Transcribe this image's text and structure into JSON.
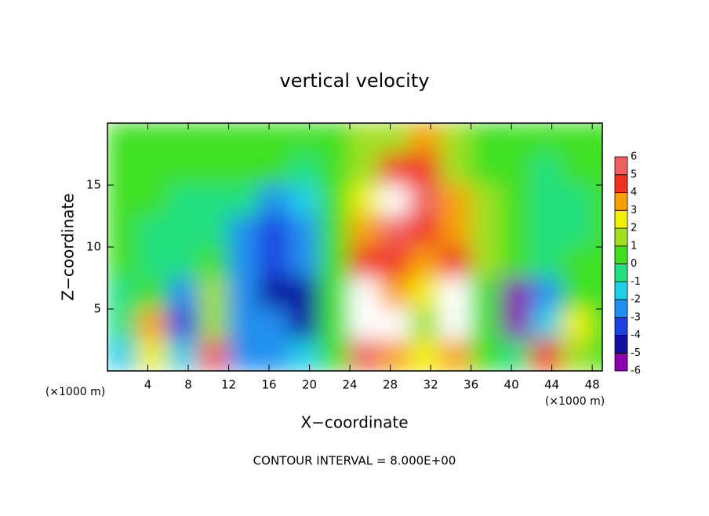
{
  "chart_data": {
    "type": "heatmap",
    "title": "vertical velocity",
    "x_label": "X−coordinate",
    "y_label": "Z−coordinate",
    "x_unit": "(×1000 m)",
    "y_unit": "(×1000 m)",
    "footer": "CONTOUR INTERVAL = 8.000E+00",
    "xlim": [
      0,
      49
    ],
    "ylim": [
      0,
      20
    ],
    "xticks": [
      4,
      8,
      12,
      16,
      20,
      24,
      28,
      32,
      36,
      40,
      44,
      48
    ],
    "yticks": [
      5,
      10,
      15
    ],
    "x": [
      1.5,
      4.5,
      7.5,
      10.5,
      13.5,
      16.5,
      19.5,
      22.5,
      25.5,
      28.5,
      31.5,
      34.5,
      37.5,
      40.5,
      43.5,
      46.5,
      49.5
    ],
    "y": [
      18.75,
      16.25,
      13.75,
      11.25,
      8.75,
      6.25,
      3.75,
      1.25
    ],
    "z": [
      [
        0.5,
        0,
        0,
        0.5,
        0.5,
        0.5,
        0,
        0.5,
        1,
        1.5,
        3,
        1,
        0.5,
        0,
        0.5,
        0,
        0
      ],
      [
        0,
        0,
        0,
        0.5,
        0,
        0,
        -0.5,
        0.5,
        1.5,
        4,
        4,
        1.5,
        0.5,
        0,
        -0.5,
        0,
        0
      ],
      [
        0.5,
        0,
        -0.5,
        -1,
        -1,
        -3,
        -2,
        0.5,
        2,
        6,
        5,
        3,
        1,
        0,
        -1,
        -0.5,
        0
      ],
      [
        0.5,
        -0.5,
        -1,
        -1,
        -3,
        -4,
        -3,
        0,
        3,
        5,
        4,
        3,
        1,
        0,
        -1,
        -0.5,
        0
      ],
      [
        0,
        -0.5,
        -1,
        0.5,
        -3,
        -4,
        -3,
        0,
        4,
        4,
        3,
        4,
        1,
        0,
        -1,
        0.5,
        0
      ],
      [
        -1,
        0,
        -3,
        1,
        -3,
        -5,
        -5,
        0,
        7,
        3,
        2,
        7,
        0,
        -6,
        -3,
        0,
        0
      ],
      [
        -1,
        3,
        -4,
        1.5,
        -3,
        -3,
        -5,
        0.5,
        7,
        7,
        1,
        7,
        0,
        -6,
        -2,
        2,
        0
      ],
      [
        -2,
        2,
        -2,
        5,
        -3,
        -3,
        -2,
        0.5,
        5,
        3,
        2,
        3,
        0,
        -1,
        4,
        1,
        0
      ]
    ],
    "levels": [
      -6,
      -5,
      -4,
      -3,
      -2,
      -1,
      0,
      1,
      2,
      3,
      4,
      5,
      6
    ],
    "colors": [
      "#8a00b0",
      "#1010a0",
      "#1a40e0",
      "#2090f0",
      "#20d0e8",
      "#20e080",
      "#40e020",
      "#a0e020",
      "#f0f000",
      "#f8a000",
      "#f03020",
      "#f06060"
    ],
    "over_color": "#ffffff"
  }
}
